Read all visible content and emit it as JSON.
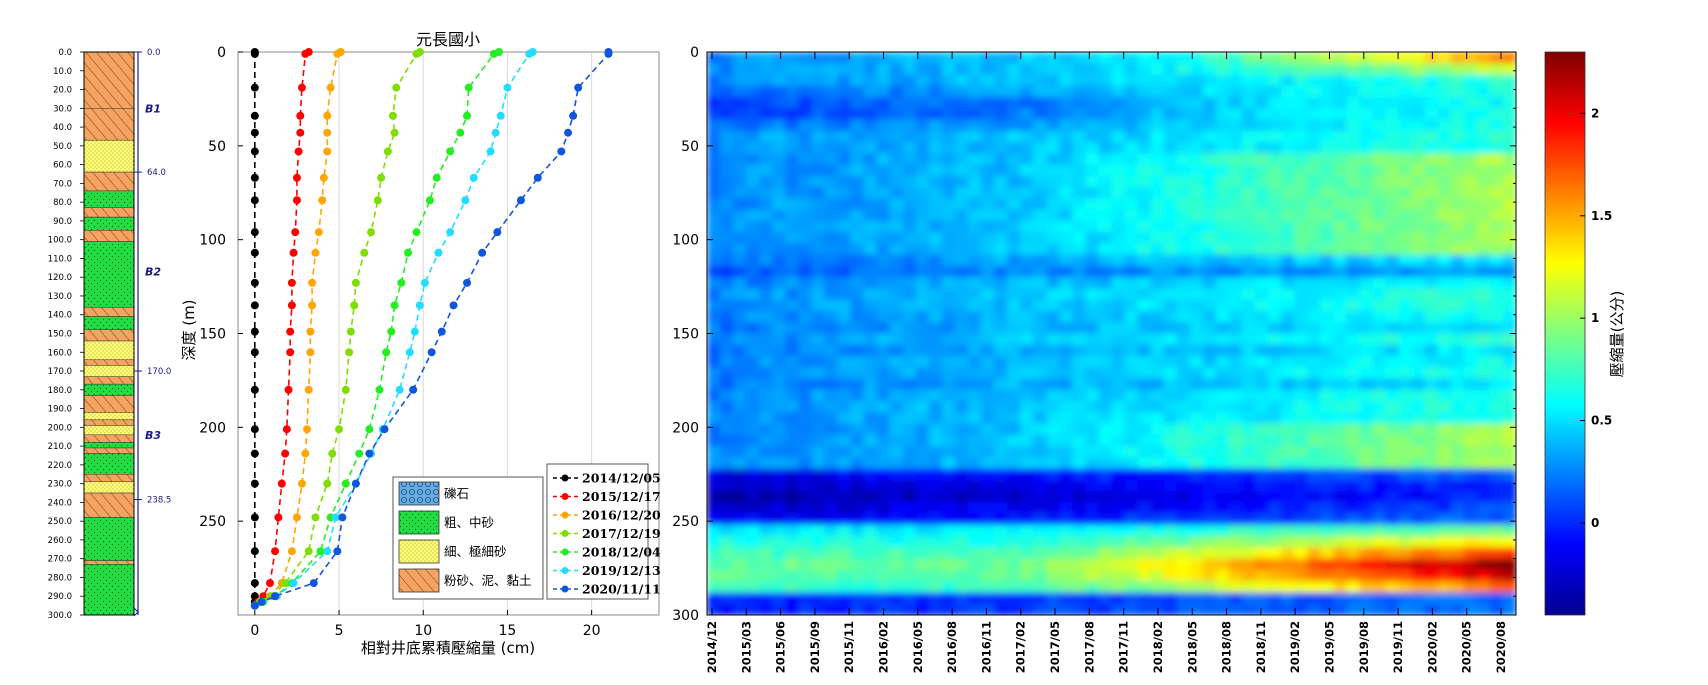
{
  "chart_data": [
    {
      "type": "stratigraphic-column",
      "depth_ticks": [
        "0.0",
        "10.0",
        "20.0",
        "30.0",
        "40.0",
        "50.0",
        "60.0",
        "70.0",
        "80.0",
        "90.0",
        "100.0",
        "110.0",
        "120.0",
        "130.0",
        "140.0",
        "150.0",
        "160.0",
        "170.0",
        "180.0",
        "190.0",
        "200.0",
        "210.0",
        "220.0",
        "230.0",
        "240.0",
        "250.0",
        "260.0",
        "270.0",
        "280.0",
        "290.0",
        "300.0"
      ],
      "boundary_labels": [
        {
          "depth": 0,
          "label": "0.0"
        },
        {
          "depth": 64,
          "label": "64.0"
        },
        {
          "depth": 170,
          "label": "170.0"
        },
        {
          "depth": 238.5,
          "label": "238.5"
        }
      ],
      "aquifer_labels": [
        {
          "depth": 30,
          "label": "B1"
        },
        {
          "depth": 117,
          "label": "B2"
        },
        {
          "depth": 204,
          "label": "B3"
        }
      ],
      "layers": [
        {
          "top": 0,
          "bottom": 30,
          "lith": "silt_clay"
        },
        {
          "top": 30,
          "bottom": 47,
          "lith": "silt_clay"
        },
        {
          "top": 47,
          "bottom": 64,
          "lith": "fine"
        },
        {
          "top": 64,
          "bottom": 74,
          "lith": "silt_clay"
        },
        {
          "top": 74,
          "bottom": 83,
          "lith": "coarse"
        },
        {
          "top": 83,
          "bottom": 88,
          "lith": "silt_clay"
        },
        {
          "top": 88,
          "bottom": 95,
          "lith": "coarse"
        },
        {
          "top": 95,
          "bottom": 101,
          "lith": "silt_clay"
        },
        {
          "top": 101,
          "bottom": 136,
          "lith": "coarse"
        },
        {
          "top": 136,
          "bottom": 141,
          "lith": "silt_clay"
        },
        {
          "top": 141,
          "bottom": 148,
          "lith": "coarse"
        },
        {
          "top": 148,
          "bottom": 154,
          "lith": "silt_clay"
        },
        {
          "top": 154,
          "bottom": 164,
          "lith": "fine"
        },
        {
          "top": 164,
          "bottom": 167,
          "lith": "silt_clay"
        },
        {
          "top": 167,
          "bottom": 173,
          "lith": "fine"
        },
        {
          "top": 173,
          "bottom": 177,
          "lith": "silt_clay"
        },
        {
          "top": 177,
          "bottom": 183,
          "lith": "coarse"
        },
        {
          "top": 183,
          "bottom": 192,
          "lith": "silt_clay"
        },
        {
          "top": 192,
          "bottom": 196,
          "lith": "fine"
        },
        {
          "top": 196,
          "bottom": 199,
          "lith": "silt_clay"
        },
        {
          "top": 199,
          "bottom": 204,
          "lith": "fine"
        },
        {
          "top": 204,
          "bottom": 208,
          "lith": "silt_clay"
        },
        {
          "top": 208,
          "bottom": 211,
          "lith": "coarse"
        },
        {
          "top": 211,
          "bottom": 214,
          "lith": "silt_clay"
        },
        {
          "top": 214,
          "bottom": 225,
          "lith": "coarse"
        },
        {
          "top": 225,
          "bottom": 229,
          "lith": "silt_clay"
        },
        {
          "top": 229,
          "bottom": 235,
          "lith": "fine"
        },
        {
          "top": 235,
          "bottom": 248,
          "lith": "silt_clay"
        },
        {
          "top": 248,
          "bottom": 271,
          "lith": "coarse"
        },
        {
          "top": 271,
          "bottom": 273,
          "lith": "silt_clay"
        },
        {
          "top": 273,
          "bottom": 300,
          "lith": "coarse"
        }
      ]
    },
    {
      "type": "line",
      "title": "元長國小",
      "xlabel": "相對井底累積壓縮量 (cm)",
      "ylabel": "深度 (m)",
      "xlim": [
        -1,
        24
      ],
      "ylim": [
        0,
        300
      ],
      "xticks": [
        0,
        5,
        10,
        15,
        20
      ],
      "yticks": [
        0,
        50,
        100,
        150,
        200,
        250
      ],
      "depths": [
        0,
        1,
        19,
        34,
        43,
        53,
        67,
        79,
        96,
        107,
        123,
        135,
        149,
        160,
        180,
        201,
        214,
        230,
        248,
        266,
        283,
        290,
        293,
        295
      ],
      "series": [
        {
          "name": "2014/12/05",
          "color": "#000000",
          "values": [
            0,
            0,
            0,
            0,
            0,
            0,
            0,
            0,
            0,
            0,
            0,
            0,
            0,
            0,
            0,
            0,
            0,
            0,
            0,
            0,
            0,
            0,
            0,
            0
          ]
        },
        {
          "name": "2015/12/17",
          "color": "#ff0000",
          "values": [
            3.2,
            3.0,
            2.8,
            2.7,
            2.7,
            2.6,
            2.5,
            2.5,
            2.4,
            2.3,
            2.2,
            2.2,
            2.1,
            2.1,
            2.0,
            1.9,
            1.8,
            1.6,
            1.4,
            1.2,
            0.9,
            0.5,
            0.2,
            0
          ]
        },
        {
          "name": "2016/12/20",
          "color": "#ffa500",
          "values": [
            5.1,
            4.9,
            4.5,
            4.3,
            4.3,
            4.3,
            4.1,
            4.0,
            3.8,
            3.6,
            3.4,
            3.4,
            3.3,
            3.3,
            3.2,
            3.1,
            3.0,
            2.8,
            2.5,
            2.2,
            1.6,
            0.9,
            0.3,
            0
          ]
        },
        {
          "name": "2017/12/19",
          "color": "#7fdd00",
          "values": [
            9.8,
            9.6,
            8.4,
            8.2,
            8.3,
            7.9,
            7.5,
            7.3,
            6.9,
            6.5,
            6.0,
            5.9,
            5.7,
            5.6,
            5.4,
            5.0,
            4.6,
            4.3,
            3.6,
            3.2,
            1.8,
            1.0,
            0.3,
            0
          ]
        },
        {
          "name": "2018/12/04",
          "color": "#22ee22",
          "values": [
            14.5,
            14.2,
            12.7,
            12.6,
            12.2,
            11.6,
            10.8,
            10.4,
            9.6,
            9.1,
            8.7,
            8.3,
            8.1,
            7.8,
            7.4,
            6.8,
            6.2,
            5.4,
            4.5,
            3.9,
            2.2,
            1.2,
            0.5,
            0
          ]
        },
        {
          "name": "2019/12/13",
          "color": "#22ddff",
          "values": [
            16.5,
            16.3,
            15.0,
            14.6,
            14.3,
            14.0,
            13.0,
            12.5,
            11.6,
            10.9,
            10.1,
            9.8,
            9.5,
            9.2,
            8.6,
            7.6,
            6.9,
            6.0,
            4.8,
            4.3,
            2.3,
            1.3,
            0.4,
            0
          ]
        },
        {
          "name": "2020/11/11",
          "color": "#1155dd",
          "values": [
            21.0,
            21.0,
            19.2,
            18.9,
            18.6,
            18.2,
            16.8,
            15.8,
            14.4,
            13.5,
            12.6,
            11.8,
            11.1,
            10.5,
            9.4,
            7.7,
            6.8,
            6.0,
            5.2,
            4.9,
            3.5,
            1.2,
            0.4,
            0
          ]
        }
      ],
      "lithology_legend": [
        {
          "key": "gravel",
          "label": "礫石"
        },
        {
          "key": "coarse",
          "label": "粗、中砂"
        },
        {
          "key": "fine",
          "label": "細、極細砂"
        },
        {
          "key": "silt_clay",
          "label": "粉砂、泥、黏土"
        }
      ]
    },
    {
      "type": "heatmap",
      "ylabel": "",
      "colorbar_label": "壓縮量(公分)",
      "clim": [
        -0.45,
        2.3
      ],
      "colorbar_ticks": [
        0,
        0.5,
        1,
        1.5,
        2
      ],
      "yticks": [
        0,
        50,
        100,
        150,
        200,
        250,
        300
      ],
      "ylim": [
        0,
        300
      ],
      "x_tick_labels": [
        "2014/12",
        "2015/03",
        "2015/06",
        "2015/09",
        "2015/11",
        "2016/02",
        "2016/05",
        "2016/08",
        "2016/11",
        "2017/02",
        "2017/05",
        "2017/08",
        "2017/11",
        "2018/02",
        "2018/05",
        "2018/08",
        "2018/11",
        "2019/02",
        "2019/05",
        "2019/08",
        "2019/11",
        "2020/02",
        "2020/05",
        "2020/08"
      ],
      "summary": {
        "bands": [
          {
            "depth": 20,
            "values_early": 0.15,
            "values_late": 1.2
          },
          {
            "depth": 75,
            "values_early": 0.3,
            "values_late": 0.95
          },
          {
            "depth": 235,
            "values_early": -0.3,
            "values_late": 0.1
          },
          {
            "depth": 275,
            "values_early": 0.75,
            "values_late": 2.0
          },
          {
            "depth": 293,
            "values_early": 0.0,
            "values_late": 0.15
          }
        ]
      }
    }
  ]
}
